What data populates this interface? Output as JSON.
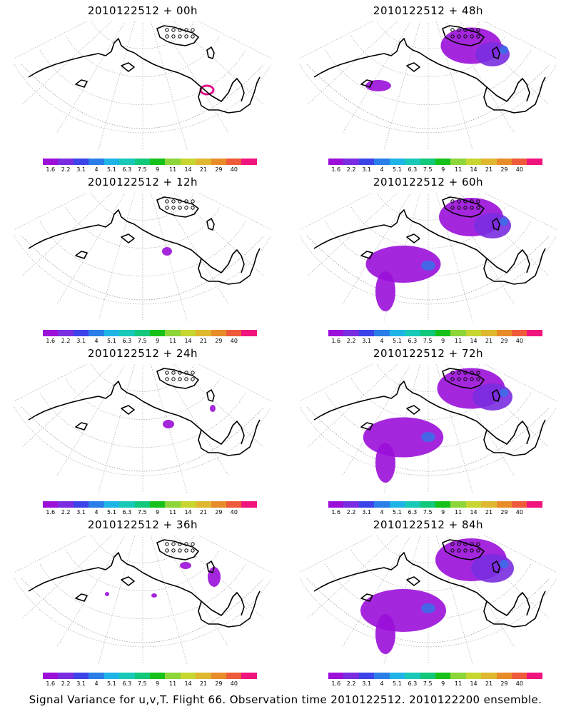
{
  "panels": [
    {
      "title": "2010122512 + 00h",
      "hour": 0
    },
    {
      "title": "2010122512 + 48h",
      "hour": 48
    },
    {
      "title": "2010122512 + 12h",
      "hour": 12
    },
    {
      "title": "2010122512 + 60h",
      "hour": 60
    },
    {
      "title": "2010122512 + 24h",
      "hour": 24
    },
    {
      "title": "2010122512 + 72h",
      "hour": 72
    },
    {
      "title": "2010122512 + 36h",
      "hour": 36
    },
    {
      "title": "2010122512 + 84h",
      "hour": 84
    }
  ],
  "colorbar": {
    "labels": [
      "1.6",
      "2.2",
      "3.1",
      "4",
      "5.1",
      "6.3",
      "7.5",
      "9",
      "11",
      "14",
      "21",
      "29",
      "40"
    ],
    "colors": [
      "#9b0fd9",
      "#7a2de0",
      "#3c43e8",
      "#2b7ee8",
      "#1fb4e8",
      "#18c9b8",
      "#12c87a",
      "#16c21a",
      "#8cd63a",
      "#c7d630",
      "#e0b830",
      "#e88c2a",
      "#ef5a3a",
      "#f0147e"
    ]
  },
  "caption": "Signal Variance for u,v,T. Flight 66. Observation time 2010122512. 2010122200 ensemble."
}
